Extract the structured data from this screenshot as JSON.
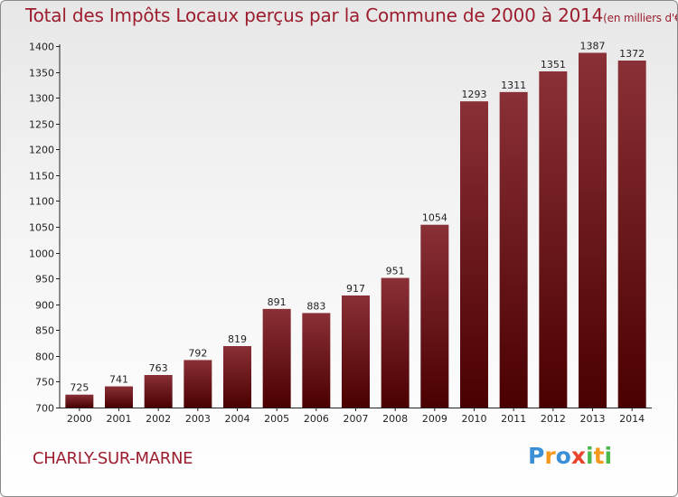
{
  "title": "Total des Impôts Locaux perçus par la Commune de 2000 à 2014",
  "title_unit": "(en milliers d'€)",
  "commune": "CHARLY-SUR-MARNE",
  "logo": {
    "text": "Proxiti",
    "colors": [
      "#3a8fd6",
      "#f39a1e",
      "#3a8fd6",
      "#e8452e",
      "#4bb84b",
      "#f39a1e",
      "#4bb84b"
    ]
  },
  "colors": {
    "bar_top": "#8a3037",
    "bar_bottom": "#4a0000",
    "title": "#9c1e2e"
  },
  "chart_data": {
    "type": "bar",
    "title": "Total des Impôts Locaux perçus par la Commune de 2000 à 2014",
    "ylabel": "en milliers d'€",
    "xlabel": "",
    "categories": [
      "2000",
      "2001",
      "2002",
      "2003",
      "2004",
      "2005",
      "2006",
      "2007",
      "2008",
      "2009",
      "2010",
      "2011",
      "2012",
      "2013",
      "2014"
    ],
    "values": [
      725,
      741,
      763,
      792,
      819,
      891,
      883,
      917,
      951,
      1054,
      1293,
      1311,
      1351,
      1387,
      1372
    ],
    "ylim": [
      700,
      1400
    ],
    "yticks": [
      700,
      750,
      800,
      850,
      900,
      950,
      1000,
      1050,
      1100,
      1150,
      1200,
      1250,
      1300,
      1350,
      1400
    ],
    "grid": false
  }
}
